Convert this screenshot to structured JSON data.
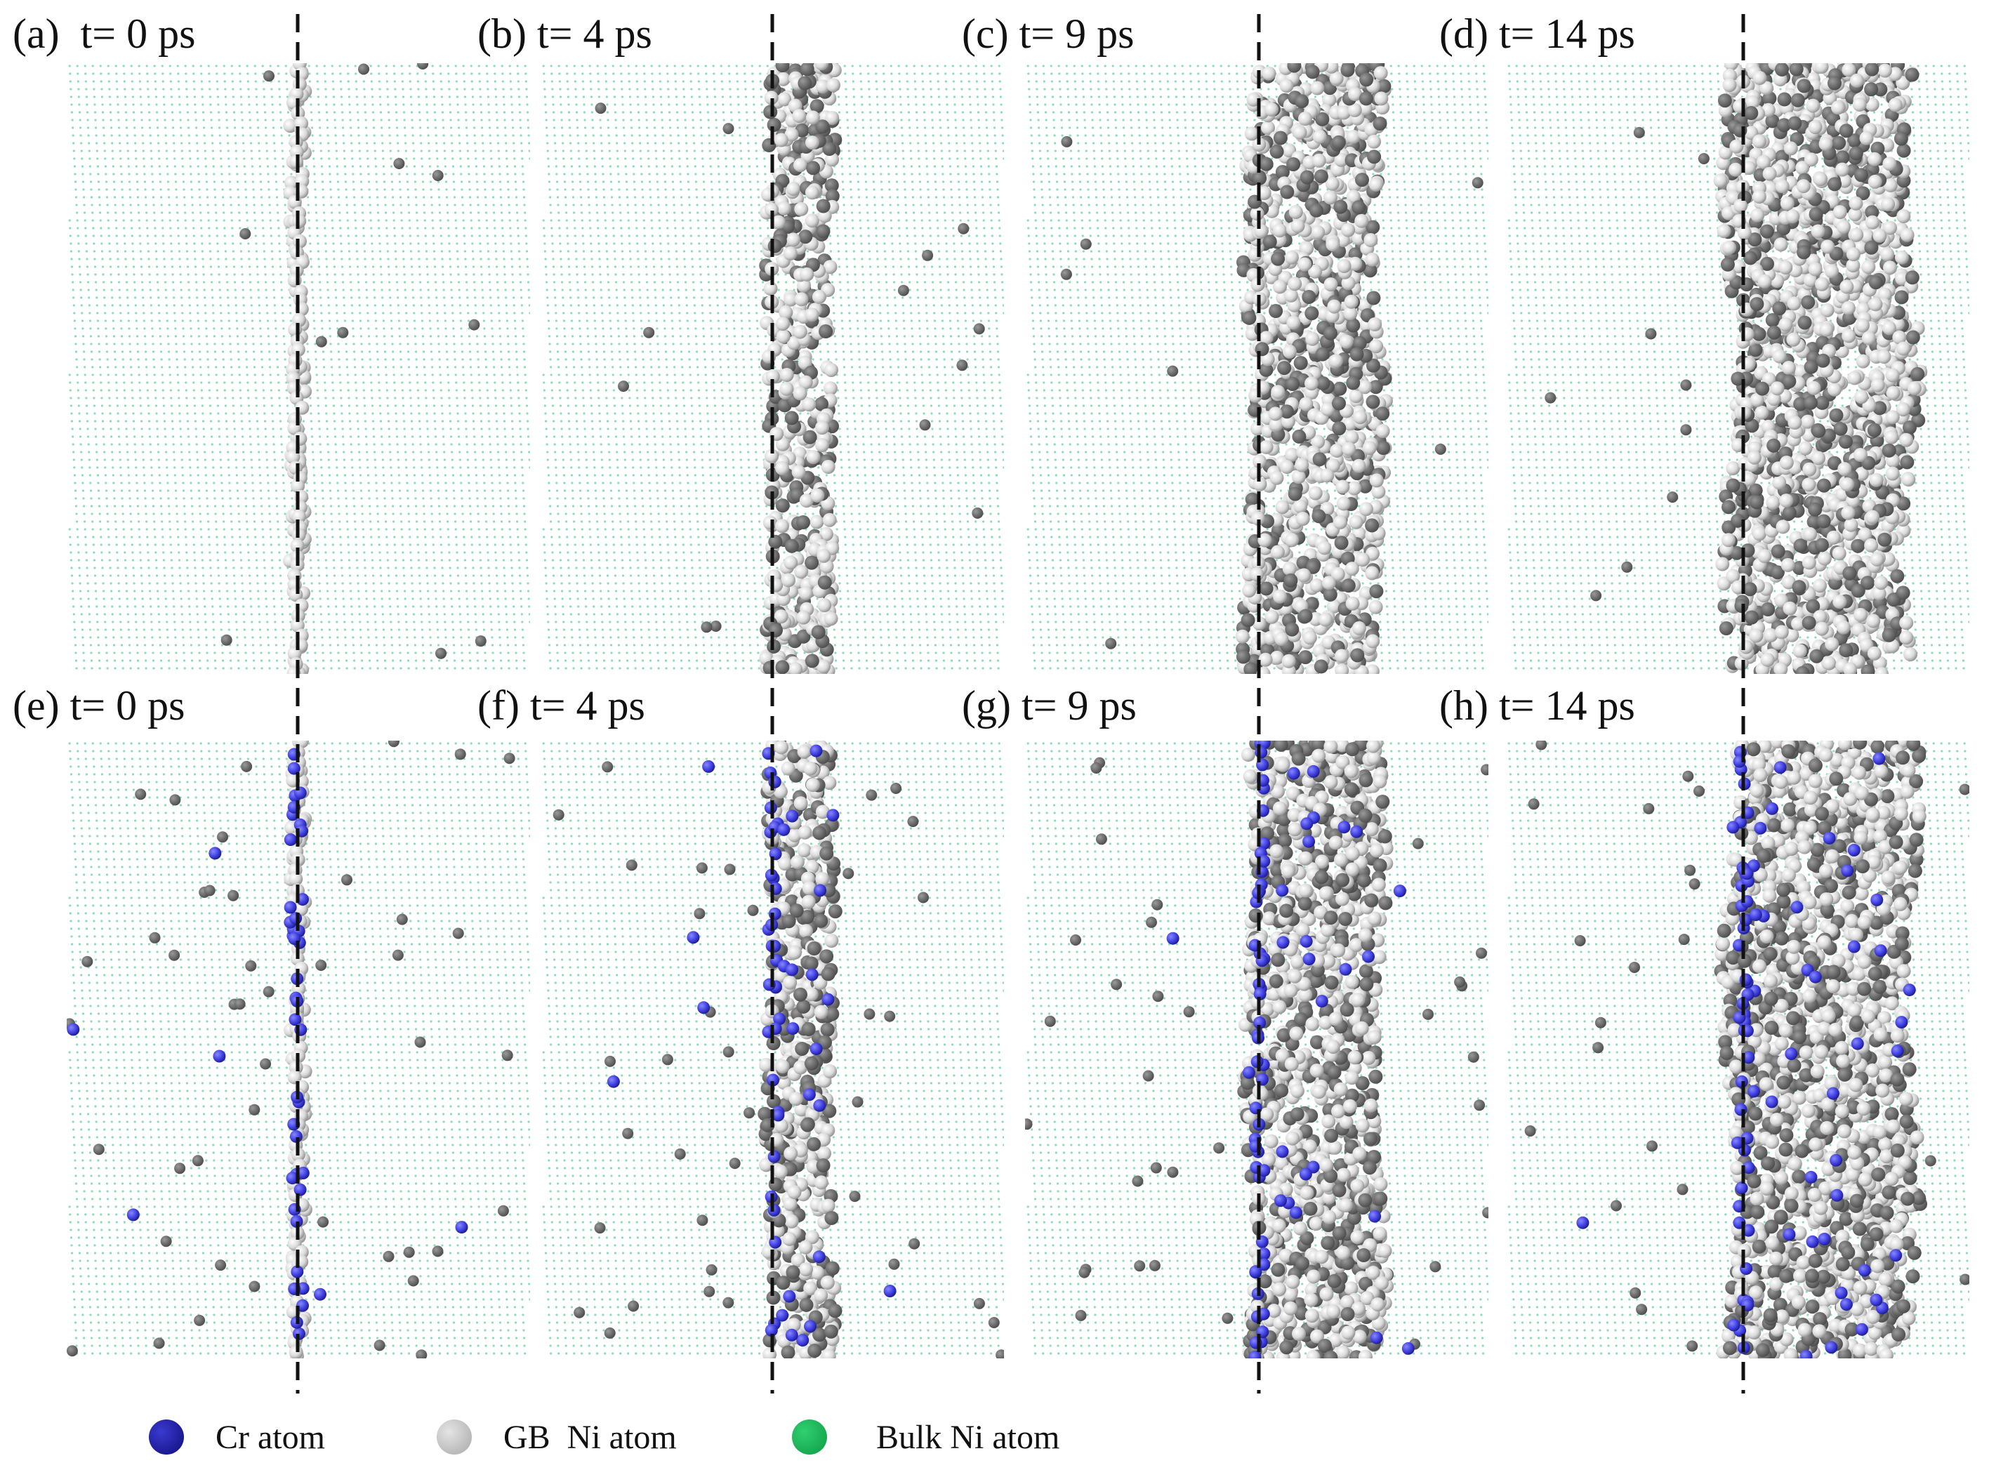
{
  "panels": [
    {
      "label": "(a)  t= 0 ps",
      "gb_width": 0.0,
      "solute": false
    },
    {
      "label": "(b) t= 4 ps",
      "gb_width": 0.3,
      "solute": false
    },
    {
      "label": "(c) t= 9 ps",
      "gb_width": 0.7,
      "solute": false
    },
    {
      "label": "(d) t= 14 ps",
      "gb_width": 1.0,
      "solute": false
    },
    {
      "label": "(e) t= 0 ps",
      "gb_width": 0.0,
      "solute": true
    },
    {
      "label": "(f) t= 4 ps",
      "gb_width": 0.3,
      "solute": true
    },
    {
      "label": "(g) t= 9 ps",
      "gb_width": 0.7,
      "solute": true
    },
    {
      "label": "(h) t= 14 ps",
      "gb_width": 1.0,
      "solute": true
    }
  ],
  "legend": [
    {
      "label": "Cr atom",
      "color": "#1a1aa0"
    },
    {
      "label": "GB  Ni atom",
      "color": "#c0c0c0"
    },
    {
      "label": "Bulk Ni atom",
      "color": "#1db954"
    }
  ],
  "colors": {
    "cr_atom": "#4444dd",
    "gb_atom": "#d8d8d8",
    "bulk_atom": "#2ec27e"
  }
}
